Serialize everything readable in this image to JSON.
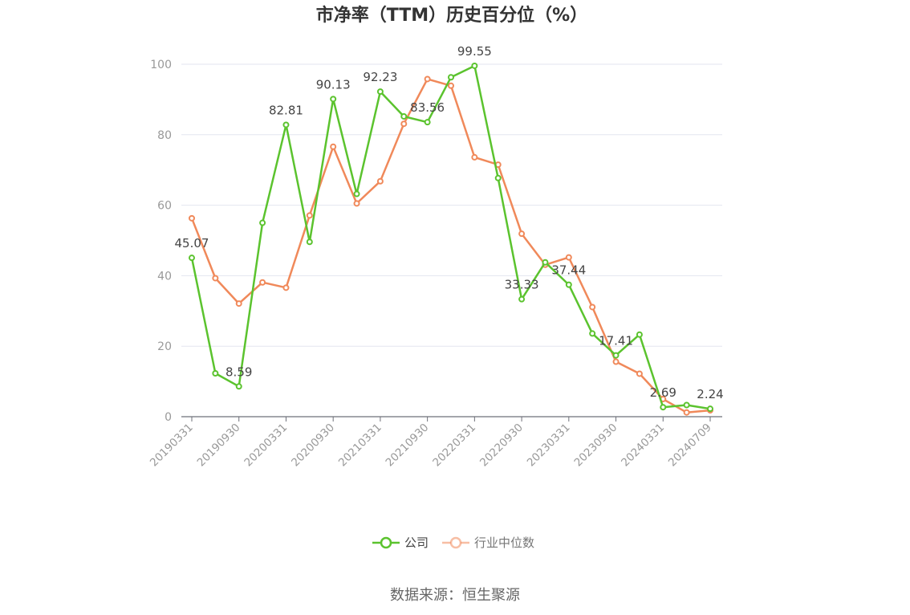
{
  "chart_data": {
    "type": "line",
    "title": "市净率（TTM）历史百分位（%）",
    "xlabel": "",
    "ylabel": "",
    "ylim": [
      0,
      100
    ],
    "yticks": [
      0,
      20,
      40,
      60,
      80,
      100
    ],
    "grid": true,
    "legend_position": "bottom",
    "x": [
      "20190331",
      "20190630",
      "20190930",
      "20191231",
      "20200331",
      "20200630",
      "20200930",
      "20201231",
      "20210331",
      "20210630",
      "20210930",
      "20211231",
      "20220331",
      "20220630",
      "20220930",
      "20221231",
      "20230331",
      "20230630",
      "20230930",
      "20231231",
      "20240331",
      "20240630",
      "20240709"
    ],
    "xtick_labels": [
      "20190331",
      "20190930",
      "20200331",
      "20200930",
      "20210331",
      "20210930",
      "20220331",
      "20220930",
      "20230331",
      "20230930",
      "20240331",
      "20240709"
    ],
    "series": [
      {
        "name": "公司",
        "color": "#5bc32e",
        "values": [
          45.07,
          12.3,
          8.59,
          55.0,
          82.81,
          49.6,
          90.13,
          63.2,
          92.23,
          85.2,
          83.56,
          96.3,
          99.55,
          67.7,
          33.33,
          43.8,
          37.44,
          23.6,
          17.41,
          23.3,
          2.69,
          3.3,
          2.24
        ],
        "labeled": [
          {
            "index": 0,
            "text": "45.07"
          },
          {
            "index": 2,
            "text": "8.59"
          },
          {
            "index": 4,
            "text": "82.81"
          },
          {
            "index": 6,
            "text": "90.13"
          },
          {
            "index": 8,
            "text": "92.23"
          },
          {
            "index": 10,
            "text": "83.56"
          },
          {
            "index": 12,
            "text": "99.55"
          },
          {
            "index": 14,
            "text": "33.33"
          },
          {
            "index": 16,
            "text": "37.44"
          },
          {
            "index": 18,
            "text": "17.41"
          },
          {
            "index": 20,
            "text": "2.69"
          },
          {
            "index": 22,
            "text": "2.24"
          }
        ]
      },
      {
        "name": "行业中位数",
        "color": "#f0895a",
        "values": [
          56.3,
          39.3,
          32.1,
          38.1,
          36.6,
          57.1,
          76.6,
          60.5,
          66.8,
          83.1,
          95.8,
          93.9,
          73.6,
          71.5,
          51.9,
          43.1,
          45.2,
          31.1,
          15.6,
          12.2,
          5.0,
          1.2,
          1.8
        ]
      }
    ]
  },
  "source_text": "数据来源：恒生聚源"
}
